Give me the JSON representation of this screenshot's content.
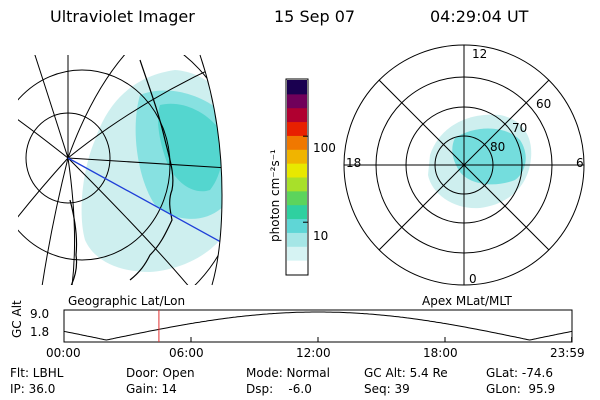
{
  "header": {
    "instrument": "Ultraviolet Imager",
    "date": "15 Sep 07",
    "time": "04:29:04 UT"
  },
  "left_panel": {
    "caption": "Geographic Lat/Lon"
  },
  "right_panel": {
    "caption": "Apex MLat/MLT",
    "mlt_labels": {
      "top": "12",
      "bottom": "0",
      "left": "18",
      "right": "6"
    },
    "mlat_labels": [
      "60",
      "70",
      "80"
    ]
  },
  "colorbar": {
    "unit": "photon cm⁻²s⁻¹",
    "ticks": [
      "100",
      "10"
    ],
    "tick_values": [
      100,
      10
    ],
    "range": [
      2.5,
      450
    ],
    "scale": "log",
    "colors": [
      "#ffffff",
      "#d6f3f3",
      "#a5e6e6",
      "#5fd6d6",
      "#2fd0a0",
      "#5cd45c",
      "#a8e02a",
      "#e8e800",
      "#f0b400",
      "#f07800",
      "#e82000",
      "#b00030",
      "#70005a",
      "#1a0050"
    ]
  },
  "orbit": {
    "ylabel": "GC Alt",
    "yticks": [
      "9.0",
      "1.8"
    ],
    "ytick_values": [
      9.0,
      1.8
    ],
    "xticks": [
      "00:00",
      "06:00",
      "12:00",
      "18:00",
      "23:59"
    ],
    "xtick_hours": [
      0,
      6,
      12,
      18,
      23.983
    ],
    "current_hour": 4.484,
    "marker_color": "#e03030"
  },
  "status": {
    "flt": "Flt: LBHL",
    "ip": "IP: 36.0",
    "door": "Door: Open",
    "gain": "Gain: 14",
    "mode": "Mode: Normal",
    "dsp": "Dsp:    -6.0",
    "gcalt": "GC Alt: 5.4 Re",
    "seq": "Seq: 39",
    "glat": "GLat: -74.6",
    "glon": "GLon:  95.9"
  }
}
